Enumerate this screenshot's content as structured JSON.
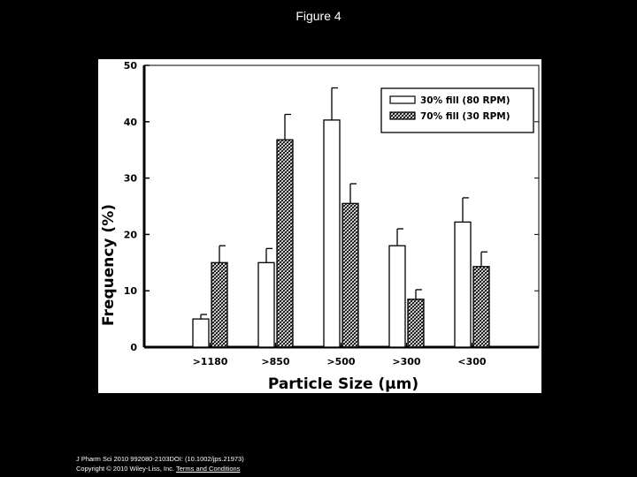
{
  "slide": {
    "title": "Figure 4"
  },
  "footer": {
    "citation": "J Pharm Sci 2010 992080-2103DOI: (10.1002/jps.21973)",
    "copyright": "Copyright © 2010 Wiley-Liss, Inc.",
    "link_text": "Terms and Conditions"
  },
  "colors": {
    "background": "#000000",
    "plot_bg": "#ffffff",
    "axis": "#000000",
    "pattern_fill": "crosshatch black on white"
  },
  "chart_data": {
    "type": "bar",
    "title": "",
    "xlabel": "Particle Size (μm)",
    "ylabel": "Frequency (%)",
    "ylim": [
      0,
      50
    ],
    "yticks": [
      0,
      10,
      20,
      30,
      40,
      50
    ],
    "categories": [
      ">1180",
      ">850",
      ">500",
      ">300",
      "<300"
    ],
    "series": [
      {
        "name": "30% fill (80 RPM)",
        "fill": "open",
        "values": [
          5,
          15,
          40.3,
          18,
          22.2
        ],
        "errors": [
          0.8,
          2.5,
          5.7,
          3.0,
          4.3
        ]
      },
      {
        "name": "70% fill (30 RPM)",
        "fill": "hatched",
        "values": [
          15,
          36.8,
          25.5,
          8.5,
          14.3
        ],
        "errors": [
          3.0,
          4.5,
          3.5,
          1.7,
          2.6
        ]
      }
    ],
    "legend_position": "top-right",
    "grid": false
  }
}
